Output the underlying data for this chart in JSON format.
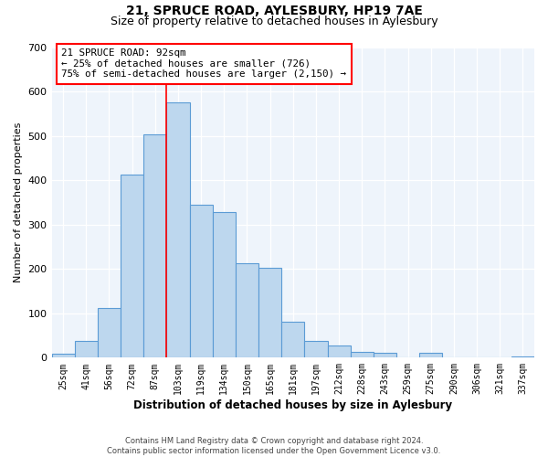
{
  "title": "21, SPRUCE ROAD, AYLESBURY, HP19 7AE",
  "subtitle": "Size of property relative to detached houses in Aylesbury",
  "xlabel": "Distribution of detached houses by size in Aylesbury",
  "ylabel": "Number of detached properties",
  "bar_labels": [
    "25sqm",
    "41sqm",
    "56sqm",
    "72sqm",
    "87sqm",
    "103sqm",
    "119sqm",
    "134sqm",
    "150sqm",
    "165sqm",
    "181sqm",
    "197sqm",
    "212sqm",
    "228sqm",
    "243sqm",
    "259sqm",
    "275sqm",
    "290sqm",
    "306sqm",
    "321sqm",
    "337sqm"
  ],
  "bar_values": [
    8,
    38,
    112,
    413,
    503,
    575,
    345,
    328,
    212,
    202,
    80,
    38,
    27,
    14,
    11,
    0,
    11,
    0,
    0,
    0,
    3
  ],
  "bar_color": "#BDD7EE",
  "bar_edge_color": "#5B9BD5",
  "vline_color": "red",
  "vline_x": 4.5,
  "annotation_title": "21 SPRUCE ROAD: 92sqm",
  "annotation_line2": "← 25% of detached houses are smaller (726)",
  "annotation_line3": "75% of semi-detached houses are larger (2,150) →",
  "annotation_box_color": "white",
  "annotation_box_edge": "red",
  "ylim": [
    0,
    700
  ],
  "yticks": [
    0,
    100,
    200,
    300,
    400,
    500,
    600,
    700
  ],
  "footer1": "Contains HM Land Registry data © Crown copyright and database right 2024.",
  "footer2": "Contains public sector information licensed under the Open Government Licence v3.0.",
  "bg_color": "#EEF4FB",
  "title_fontsize": 10,
  "subtitle_fontsize": 9
}
